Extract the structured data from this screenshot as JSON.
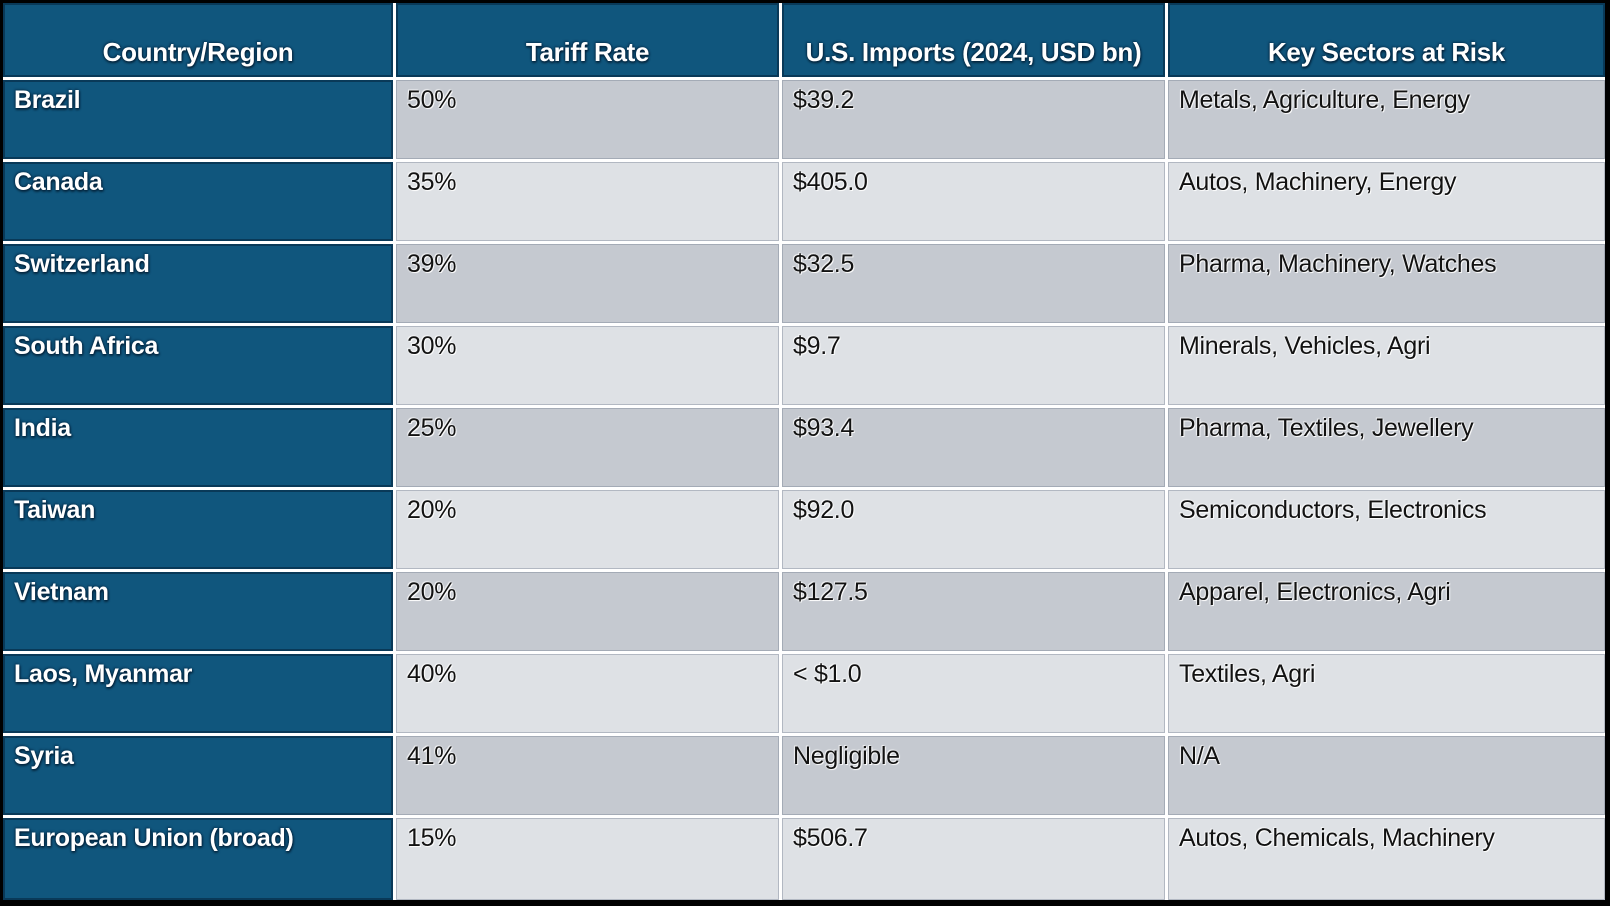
{
  "chart_data": {
    "type": "table",
    "title": "",
    "columns": [
      "Country/Region",
      "Tariff Rate",
      "U.S. Imports (2024, USD bn)",
      "Key Sectors at Risk"
    ],
    "rows": [
      [
        "Brazil",
        "50%",
        "$39.2",
        "Metals, Agriculture, Energy"
      ],
      [
        "Canada",
        "35%",
        "$405.0",
        "Autos, Machinery, Energy"
      ],
      [
        "Switzerland",
        "39%",
        "$32.5",
        "Pharma, Machinery, Watches"
      ],
      [
        "South Africa",
        "30%",
        "$9.7",
        "Minerals, Vehicles, Agri"
      ],
      [
        "India",
        "25%",
        "$93.4",
        "Pharma, Textiles, Jewellery"
      ],
      [
        "Taiwan",
        "20%",
        "$92.0",
        "Semiconductors, Electronics"
      ],
      [
        "Vietnam",
        "20%",
        "$127.5",
        "Apparel, Electronics, Agri"
      ],
      [
        "Laos, Myanmar",
        "40%",
        "< $1.0",
        "Textiles, Agri"
      ],
      [
        "Syria",
        "41%",
        "Negligible",
        "N/A"
      ],
      [
        "European Union (broad)",
        "15%",
        "$506.7",
        "Autos, Chemicals, Machinery"
      ]
    ],
    "layout_hints": {
      "header_style": "dark-teal band, white bold text, bottom-center aligned",
      "first_column_style": "dark-teal band, white bold text",
      "body_rows": "alternating gray banding, odd rows darker",
      "grid": "white separator lines, black outer border"
    }
  },
  "colors": {
    "teal_bg": "#10567D",
    "row_odd_bg": "#C5C9D0",
    "row_even_bg": "#DEE1E5",
    "outer_border": "#000000",
    "gap_line": "#FFFFFF",
    "header_text": "#FFFFFF",
    "body_text": "#121212"
  }
}
